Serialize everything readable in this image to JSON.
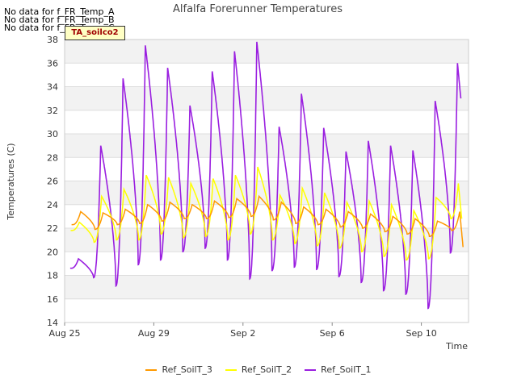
{
  "no_data_messages": [
    "No data for f_FR_Temp_A",
    "No data for f_FR_Temp_B",
    "No data for f_FR_Temp_C"
  ],
  "badge": "TA_soilco2",
  "chart_data": {
    "type": "line",
    "title": "Alfalfa Forerunner Temperatures",
    "xlabel": "Time",
    "ylabel": "Temperatures (C)",
    "ylim": [
      14,
      38
    ],
    "yticks": [
      14,
      16,
      18,
      20,
      22,
      24,
      26,
      28,
      30,
      32,
      34,
      36,
      38
    ],
    "xlim": [
      "2023-08-25",
      "2023-09-12"
    ],
    "xticks": [
      {
        "label": "Aug 25",
        "date": "2023-08-25"
      },
      {
        "label": "Aug 29",
        "date": "2023-08-29"
      },
      {
        "label": "Sep 2",
        "date": "2023-09-02"
      },
      {
        "label": "Sep 6",
        "date": "2023-09-06"
      },
      {
        "label": "Sep 10",
        "date": "2023-09-10"
      }
    ],
    "grid": true,
    "legend_position": "bottom",
    "series": [
      {
        "name": "Ref_SoilT_3",
        "color": "#ff9900",
        "points": [
          {
            "date": "2023-08-25 06:00",
            "max": 23.4,
            "min": 22.3
          },
          {
            "date": "2023-08-26 06:00",
            "max": 23.3,
            "min": 21.9
          },
          {
            "date": "2023-08-27 06:00",
            "max": 23.6,
            "min": 22.3
          },
          {
            "date": "2023-08-28 06:00",
            "max": 24.0,
            "min": 22.4
          },
          {
            "date": "2023-08-29 06:00",
            "max": 24.2,
            "min": 22.6
          },
          {
            "date": "2023-08-30 06:00",
            "max": 24.0,
            "min": 22.8
          },
          {
            "date": "2023-08-31 06:00",
            "max": 24.3,
            "min": 22.8
          },
          {
            "date": "2023-09-01 06:00",
            "max": 24.5,
            "min": 22.9
          },
          {
            "date": "2023-09-02 06:00",
            "max": 24.7,
            "min": 23.0
          },
          {
            "date": "2023-09-03 06:00",
            "max": 24.2,
            "min": 22.7
          },
          {
            "date": "2023-09-04 06:00",
            "max": 23.8,
            "min": 22.4
          },
          {
            "date": "2023-09-05 06:00",
            "max": 23.6,
            "min": 22.3
          },
          {
            "date": "2023-09-06 06:00",
            "max": 23.4,
            "min": 22.1
          },
          {
            "date": "2023-09-07 06:00",
            "max": 23.2,
            "min": 22.0
          },
          {
            "date": "2023-09-08 06:00",
            "max": 23.0,
            "min": 21.7
          },
          {
            "date": "2023-09-09 06:00",
            "max": 22.8,
            "min": 21.5
          },
          {
            "date": "2023-09-10 06:00",
            "max": 22.6,
            "min": 21.3
          },
          {
            "date": "2023-09-11 06:00",
            "max": 23.4,
            "min": 21.8
          }
        ]
      },
      {
        "name": "Ref_SoilT_2",
        "color": "#ffff00",
        "points": [
          {
            "date": "2023-08-25 06:00",
            "max": 22.5,
            "min": 21.8
          },
          {
            "date": "2023-08-26 06:00",
            "max": 24.7,
            "min": 20.8
          },
          {
            "date": "2023-08-27 06:00",
            "max": 25.3,
            "min": 21.0
          },
          {
            "date": "2023-08-28 06:00",
            "max": 26.5,
            "min": 21.0
          },
          {
            "date": "2023-08-29 06:00",
            "max": 26.3,
            "min": 21.5
          },
          {
            "date": "2023-08-30 06:00",
            "max": 25.8,
            "min": 21.2
          },
          {
            "date": "2023-08-31 06:00",
            "max": 26.2,
            "min": 21.3
          },
          {
            "date": "2023-09-01 06:00",
            "max": 26.5,
            "min": 21.0
          },
          {
            "date": "2023-09-02 06:00",
            "max": 27.2,
            "min": 21.5
          },
          {
            "date": "2023-09-03 06:00",
            "max": 24.8,
            "min": 21.0
          },
          {
            "date": "2023-09-04 06:00",
            "max": 25.4,
            "min": 20.7
          },
          {
            "date": "2023-09-05 06:00",
            "max": 25.0,
            "min": 20.5
          },
          {
            "date": "2023-09-06 06:00",
            "max": 24.2,
            "min": 20.3
          },
          {
            "date": "2023-09-07 06:00",
            "max": 24.3,
            "min": 20.0
          },
          {
            "date": "2023-09-08 06:00",
            "max": 24.0,
            "min": 19.6
          },
          {
            "date": "2023-09-09 06:00",
            "max": 23.5,
            "min": 19.3
          },
          {
            "date": "2023-09-10 06:00",
            "max": 24.6,
            "min": 19.4
          },
          {
            "date": "2023-09-11 06:00",
            "max": 25.8,
            "min": 22.8
          }
        ]
      },
      {
        "name": "Ref_SoilT_1",
        "color": "#9a1fe0",
        "points": [
          {
            "date": "2023-08-25 06:00",
            "max": 19.4,
            "min": 18.6
          },
          {
            "date": "2023-08-26 06:00",
            "max": 29.0,
            "min": 17.8
          },
          {
            "date": "2023-08-27 06:00",
            "max": 34.7,
            "min": 17.1
          },
          {
            "date": "2023-08-28 06:00",
            "max": 37.5,
            "min": 18.9
          },
          {
            "date": "2023-08-29 06:00",
            "max": 35.6,
            "min": 19.3
          },
          {
            "date": "2023-08-30 06:00",
            "max": 32.4,
            "min": 20.0
          },
          {
            "date": "2023-08-31 06:00",
            "max": 35.3,
            "min": 20.3
          },
          {
            "date": "2023-09-01 06:00",
            "max": 37.0,
            "min": 19.3
          },
          {
            "date": "2023-09-02 06:00",
            "max": 37.8,
            "min": 17.7
          },
          {
            "date": "2023-09-03 06:00",
            "max": 30.6,
            "min": 18.4
          },
          {
            "date": "2023-09-04 06:00",
            "max": 33.4,
            "min": 18.7
          },
          {
            "date": "2023-09-05 06:00",
            "max": 30.5,
            "min": 18.5
          },
          {
            "date": "2023-09-06 06:00",
            "max": 28.5,
            "min": 17.9
          },
          {
            "date": "2023-09-07 06:00",
            "max": 29.4,
            "min": 17.4
          },
          {
            "date": "2023-09-08 06:00",
            "max": 29.0,
            "min": 16.7
          },
          {
            "date": "2023-09-09 06:00",
            "max": 28.6,
            "min": 16.4
          },
          {
            "date": "2023-09-10 06:00",
            "max": 32.8,
            "min": 15.2
          },
          {
            "date": "2023-09-11 06:00",
            "max": 36.0,
            "min": 19.9
          }
        ]
      }
    ]
  }
}
